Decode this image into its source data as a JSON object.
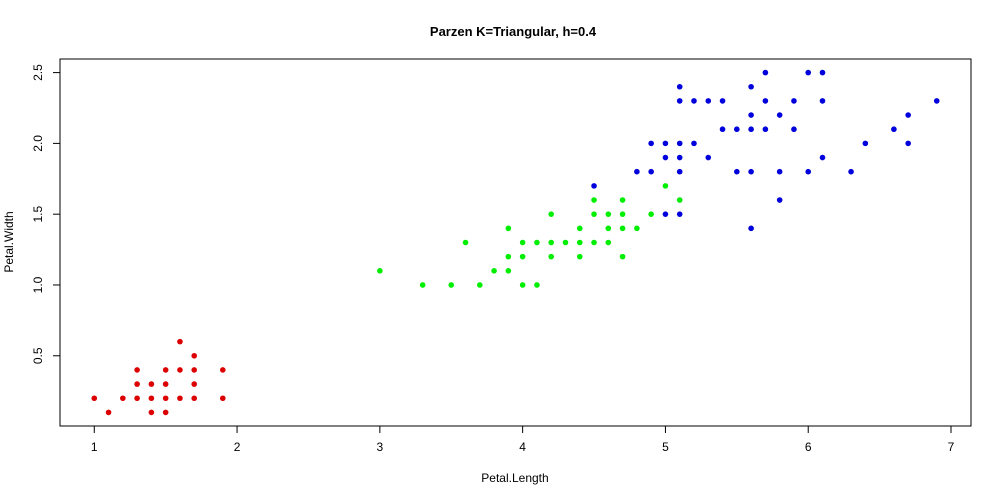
{
  "chart_data": {
    "type": "scatter",
    "title": "Parzen K=Triangular, h=0.4",
    "xlabel": "Petal.Length",
    "ylabel": "Petal.Width",
    "xlim": [
      0.76,
      7.14
    ],
    "ylim": [
      0.004,
      2.596
    ],
    "xticks": [
      1,
      2,
      3,
      4,
      5,
      6,
      7
    ],
    "xtick_labels": [
      "1",
      "2",
      "3",
      "4",
      "5",
      "6",
      "7"
    ],
    "yticks": [
      0.5,
      1.0,
      1.5,
      2.0,
      2.5
    ],
    "ytick_labels": [
      "0.5",
      "1.0",
      "1.5",
      "2.0",
      "2.5"
    ],
    "grid": false,
    "legend": "none",
    "series": [
      {
        "color": "#dd0000",
        "points": [
          [
            1.0,
            0.2
          ],
          [
            1.1,
            0.1
          ],
          [
            1.2,
            0.2
          ],
          [
            1.3,
            0.2
          ],
          [
            1.3,
            0.3
          ],
          [
            1.3,
            0.4
          ],
          [
            1.4,
            0.1
          ],
          [
            1.4,
            0.2
          ],
          [
            1.4,
            0.3
          ],
          [
            1.5,
            0.1
          ],
          [
            1.5,
            0.2
          ],
          [
            1.5,
            0.3
          ],
          [
            1.5,
            0.4
          ],
          [
            1.6,
            0.2
          ],
          [
            1.6,
            0.4
          ],
          [
            1.6,
            0.6
          ],
          [
            1.7,
            0.2
          ],
          [
            1.7,
            0.3
          ],
          [
            1.7,
            0.4
          ],
          [
            1.7,
            0.5
          ],
          [
            1.9,
            0.2
          ],
          [
            1.9,
            0.4
          ]
        ]
      },
      {
        "color": "#00ee00",
        "points": [
          [
            3.0,
            1.1
          ],
          [
            3.3,
            1.0
          ],
          [
            3.5,
            1.0
          ],
          [
            3.6,
            1.3
          ],
          [
            3.7,
            1.0
          ],
          [
            3.8,
            1.1
          ],
          [
            3.9,
            1.1
          ],
          [
            3.9,
            1.2
          ],
          [
            3.9,
            1.4
          ],
          [
            4.0,
            1.0
          ],
          [
            4.0,
            1.2
          ],
          [
            4.0,
            1.3
          ],
          [
            4.1,
            1.0
          ],
          [
            4.1,
            1.3
          ],
          [
            4.2,
            1.2
          ],
          [
            4.2,
            1.3
          ],
          [
            4.2,
            1.5
          ],
          [
            4.3,
            1.3
          ],
          [
            4.4,
            1.2
          ],
          [
            4.4,
            1.3
          ],
          [
            4.4,
            1.4
          ],
          [
            4.5,
            1.3
          ],
          [
            4.5,
            1.5
          ],
          [
            4.5,
            1.6
          ],
          [
            4.6,
            1.3
          ],
          [
            4.6,
            1.4
          ],
          [
            4.6,
            1.5
          ],
          [
            4.7,
            1.2
          ],
          [
            4.7,
            1.4
          ],
          [
            4.7,
            1.5
          ],
          [
            4.7,
            1.6
          ],
          [
            4.8,
            1.4
          ],
          [
            4.9,
            1.5
          ],
          [
            5.0,
            1.7
          ],
          [
            5.1,
            1.6
          ]
        ]
      },
      {
        "color": "#0000dd",
        "points": [
          [
            4.5,
            1.7
          ],
          [
            4.8,
            1.8
          ],
          [
            4.9,
            1.8
          ],
          [
            4.9,
            2.0
          ],
          [
            5.0,
            1.5
          ],
          [
            5.0,
            1.9
          ],
          [
            5.0,
            2.0
          ],
          [
            5.1,
            1.5
          ],
          [
            5.1,
            1.8
          ],
          [
            5.1,
            1.9
          ],
          [
            5.1,
            2.0
          ],
          [
            5.1,
            2.3
          ],
          [
            5.1,
            2.4
          ],
          [
            5.2,
            2.0
          ],
          [
            5.2,
            2.3
          ],
          [
            5.3,
            1.9
          ],
          [
            5.3,
            2.3
          ],
          [
            5.4,
            2.1
          ],
          [
            5.4,
            2.3
          ],
          [
            5.5,
            1.8
          ],
          [
            5.5,
            2.1
          ],
          [
            5.6,
            1.4
          ],
          [
            5.6,
            1.8
          ],
          [
            5.6,
            2.1
          ],
          [
            5.6,
            2.2
          ],
          [
            5.6,
            2.4
          ],
          [
            5.7,
            2.1
          ],
          [
            5.7,
            2.3
          ],
          [
            5.7,
            2.5
          ],
          [
            5.8,
            1.6
          ],
          [
            5.8,
            1.8
          ],
          [
            5.8,
            2.2
          ],
          [
            5.9,
            2.1
          ],
          [
            5.9,
            2.3
          ],
          [
            6.0,
            1.8
          ],
          [
            6.0,
            2.5
          ],
          [
            6.1,
            1.9
          ],
          [
            6.1,
            2.3
          ],
          [
            6.1,
            2.5
          ],
          [
            6.3,
            1.8
          ],
          [
            6.4,
            2.0
          ],
          [
            6.6,
            2.1
          ],
          [
            6.7,
            2.0
          ],
          [
            6.7,
            2.2
          ],
          [
            6.9,
            2.3
          ]
        ]
      }
    ]
  }
}
